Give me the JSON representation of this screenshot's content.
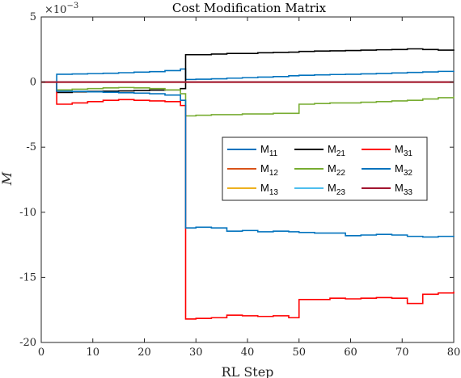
{
  "chart_data": {
    "type": "line",
    "step": true,
    "title": "Cost Modification Matrix",
    "xlabel": "RL Step",
    "ylabel": "M",
    "scale_label": "×10",
    "scale_exponent": "−3",
    "xlim": [
      0,
      80
    ],
    "ylim": [
      -20,
      5
    ],
    "xticks": [
      0,
      10,
      20,
      30,
      40,
      50,
      60,
      70,
      80
    ],
    "yticks": [
      5,
      0,
      -5,
      -10,
      -15,
      -20
    ],
    "grid": false,
    "legend_position": "center-right",
    "x": [
      3,
      6,
      9,
      12,
      15,
      18,
      21,
      24,
      27,
      28,
      30,
      33,
      36,
      39,
      42,
      45,
      48,
      50,
      53,
      56,
      59,
      62,
      65,
      68,
      71,
      74,
      77,
      80
    ],
    "series": [
      {
        "name": "M",
        "sub": "11",
        "color": "#0072BD",
        "values": [
          0.6,
          0.62,
          0.65,
          0.68,
          0.72,
          0.76,
          0.8,
          0.88,
          1.0,
          0.2,
          0.22,
          0.25,
          0.3,
          0.34,
          0.38,
          0.42,
          0.48,
          0.52,
          0.55,
          0.58,
          0.6,
          0.63,
          0.66,
          0.7,
          0.74,
          0.78,
          0.82,
          0.85
        ]
      },
      {
        "name": "M",
        "sub": "12",
        "color": "#D95319",
        "values": [
          0.0,
          0.0,
          0.0,
          0.0,
          0.0,
          0.0,
          0.0,
          0.0,
          0.0,
          0.0,
          0.0,
          0.0,
          0.0,
          0.0,
          0.0,
          0.0,
          0.0,
          0.0,
          0.0,
          0.0,
          0.0,
          0.0,
          0.0,
          0.0,
          0.0,
          0.0,
          0.0,
          0.0
        ]
      },
      {
        "name": "M",
        "sub": "13",
        "color": "#EDB120",
        "values": [
          0.0,
          0.0,
          0.0,
          0.0,
          0.0,
          0.0,
          0.0,
          0.0,
          0.0,
          0.0,
          0.0,
          0.0,
          0.0,
          0.0,
          0.0,
          0.0,
          0.0,
          0.0,
          0.0,
          0.0,
          0.0,
          0.0,
          0.0,
          0.0,
          0.0,
          0.0,
          0.0,
          0.0
        ]
      },
      {
        "name": "M",
        "sub": "21",
        "color": "#000000",
        "values": [
          -0.8,
          -0.75,
          -0.72,
          -0.7,
          -0.68,
          -0.65,
          -0.62,
          -0.6,
          -0.5,
          2.1,
          2.1,
          2.15,
          2.2,
          2.2,
          2.25,
          2.28,
          2.3,
          2.35,
          2.38,
          2.4,
          2.42,
          2.45,
          2.48,
          2.5,
          2.55,
          2.5,
          2.45,
          2.4
        ]
      },
      {
        "name": "M",
        "sub": "22",
        "color": "#77AC30",
        "values": [
          -0.6,
          -0.55,
          -0.5,
          -0.45,
          -0.42,
          -0.45,
          -0.5,
          -0.6,
          -0.9,
          -2.6,
          -2.55,
          -2.5,
          -2.5,
          -2.45,
          -2.45,
          -2.4,
          -2.4,
          -1.7,
          -1.65,
          -1.6,
          -1.6,
          -1.55,
          -1.5,
          -1.45,
          -1.4,
          -1.3,
          -1.2,
          -1.1
        ]
      },
      {
        "name": "M",
        "sub": "23",
        "color": "#4DBEEE",
        "values": [
          0.0,
          0.0,
          0.0,
          0.0,
          0.0,
          0.0,
          0.0,
          0.0,
          0.0,
          0.0,
          0.0,
          0.0,
          0.0,
          0.0,
          0.0,
          0.0,
          0.0,
          0.0,
          0.0,
          0.0,
          0.0,
          0.0,
          0.0,
          0.0,
          0.0,
          0.0,
          0.0,
          0.0
        ]
      },
      {
        "name": "M",
        "sub": "31",
        "color": "#FF0000",
        "values": [
          -1.7,
          -1.6,
          -1.5,
          -1.4,
          -1.35,
          -1.4,
          -1.45,
          -1.5,
          -1.8,
          -18.2,
          -18.15,
          -18.1,
          -17.9,
          -17.95,
          -18.0,
          -17.95,
          -18.1,
          -16.7,
          -16.7,
          -16.6,
          -16.65,
          -16.6,
          -16.55,
          -16.6,
          -17.0,
          -16.3,
          -16.2,
          -16.1
        ]
      },
      {
        "name": "M",
        "sub": "32",
        "color": "#0072BD",
        "values": [
          -0.7,
          -0.72,
          -0.75,
          -0.78,
          -0.82,
          -0.85,
          -0.9,
          -1.0,
          -1.4,
          -11.2,
          -11.15,
          -11.2,
          -11.45,
          -11.4,
          -11.5,
          -11.45,
          -11.5,
          -11.55,
          -11.6,
          -11.6,
          -11.8,
          -11.75,
          -11.7,
          -11.75,
          -11.85,
          -11.9,
          -11.85,
          -11.8
        ]
      },
      {
        "name": "M",
        "sub": "33",
        "color": "#A2142F",
        "values": [
          0.0,
          0.0,
          0.0,
          0.0,
          0.0,
          0.0,
          0.0,
          0.0,
          0.0,
          0.0,
          0.0,
          0.0,
          0.0,
          0.0,
          0.0,
          0.0,
          0.0,
          0.0,
          0.0,
          0.0,
          0.0,
          0.0,
          0.0,
          0.0,
          0.0,
          0.0,
          0.0,
          0.0
        ]
      }
    ]
  }
}
